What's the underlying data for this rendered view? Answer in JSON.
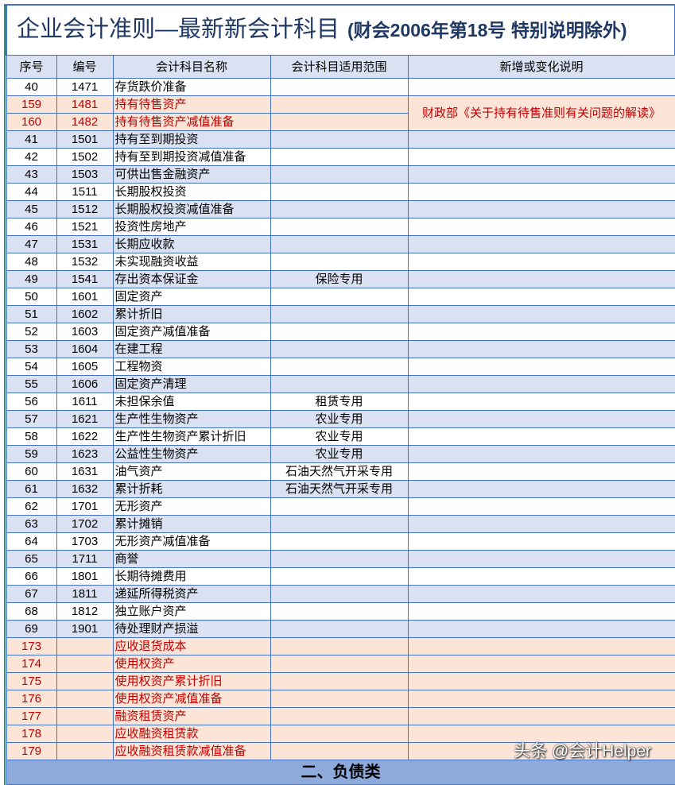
{
  "title": {
    "main": "企业会计准则—最新新会计科目",
    "sub": "(财会2006年第18号 特别说明除外)"
  },
  "columns": [
    "序号",
    "编号",
    "会计科目名称",
    "会计科目适用范围",
    "新增或变化说明"
  ],
  "merged_note": "财政部《关于持有待售准则有关问题的解读》",
  "rows": [
    {
      "seq": "40",
      "code": "1471",
      "name": "存货跌价准备",
      "scope": "",
      "style": "white"
    },
    {
      "seq": "159",
      "code": "1481",
      "name": "持有待售资产",
      "scope": "",
      "style": "pink"
    },
    {
      "seq": "160",
      "code": "1482",
      "name": "持有待售资产减值准备",
      "scope": "",
      "style": "pink"
    },
    {
      "seq": "41",
      "code": "1501",
      "name": "持有至到期投资",
      "scope": "",
      "style": "blue"
    },
    {
      "seq": "42",
      "code": "1502",
      "name": "持有至到期投资减值准备",
      "scope": "",
      "style": "white"
    },
    {
      "seq": "43",
      "code": "1503",
      "name": "可供出售金融资产",
      "scope": "",
      "style": "blue"
    },
    {
      "seq": "44",
      "code": "1511",
      "name": "长期股权投资",
      "scope": "",
      "style": "white"
    },
    {
      "seq": "45",
      "code": "1512",
      "name": "长期股权投资减值准备",
      "scope": "",
      "style": "blue"
    },
    {
      "seq": "46",
      "code": "1521",
      "name": "投资性房地产",
      "scope": "",
      "style": "white"
    },
    {
      "seq": "47",
      "code": "1531",
      "name": "长期应收款",
      "scope": "",
      "style": "blue"
    },
    {
      "seq": "48",
      "code": "1532",
      "name": "未实现融资收益",
      "scope": "",
      "style": "white"
    },
    {
      "seq": "49",
      "code": "1541",
      "name": "存出资本保证金",
      "scope": "保险专用",
      "style": "blue"
    },
    {
      "seq": "50",
      "code": "1601",
      "name": "固定资产",
      "scope": "",
      "style": "white"
    },
    {
      "seq": "51",
      "code": "1602",
      "name": "累计折旧",
      "scope": "",
      "style": "blue"
    },
    {
      "seq": "52",
      "code": "1603",
      "name": "固定资产减值准备",
      "scope": "",
      "style": "white"
    },
    {
      "seq": "53",
      "code": "1604",
      "name": "在建工程",
      "scope": "",
      "style": "blue"
    },
    {
      "seq": "54",
      "code": "1605",
      "name": "工程物资",
      "scope": "",
      "style": "white"
    },
    {
      "seq": "55",
      "code": "1606",
      "name": "固定资产清理",
      "scope": "",
      "style": "blue"
    },
    {
      "seq": "56",
      "code": "1611",
      "name": "未担保余值",
      "scope": "租赁专用",
      "style": "white"
    },
    {
      "seq": "57",
      "code": "1621",
      "name": "生产性生物资产",
      "scope": "农业专用",
      "style": "blue"
    },
    {
      "seq": "58",
      "code": "1622",
      "name": "生产性生物资产累计折旧",
      "scope": "农业专用",
      "style": "white"
    },
    {
      "seq": "59",
      "code": "1623",
      "name": "公益性生物资产",
      "scope": "农业专用",
      "style": "blue"
    },
    {
      "seq": "60",
      "code": "1631",
      "name": "油气资产",
      "scope": "石油天然气开采专用",
      "style": "white"
    },
    {
      "seq": "61",
      "code": "1632",
      "name": "累计折耗",
      "scope": "石油天然气开采专用",
      "style": "blue"
    },
    {
      "seq": "62",
      "code": "1701",
      "name": "无形资产",
      "scope": "",
      "style": "white"
    },
    {
      "seq": "63",
      "code": "1702",
      "name": "累计摊销",
      "scope": "",
      "style": "blue"
    },
    {
      "seq": "64",
      "code": "1703",
      "name": "无形资产减值准备",
      "scope": "",
      "style": "white"
    },
    {
      "seq": "65",
      "code": "1711",
      "name": "商誉",
      "scope": "",
      "style": "blue"
    },
    {
      "seq": "66",
      "code": "1801",
      "name": "长期待摊费用",
      "scope": "",
      "style": "white"
    },
    {
      "seq": "67",
      "code": "1811",
      "name": "递延所得税资产",
      "scope": "",
      "style": "blue"
    },
    {
      "seq": "68",
      "code": "1812",
      "name": "独立账户资产",
      "scope": "",
      "style": "white"
    },
    {
      "seq": "69",
      "code": "1901",
      "name": "待处理财产损溢",
      "scope": "",
      "style": "blue"
    },
    {
      "seq": "173",
      "code": "",
      "name": "应收退货成本",
      "scope": "",
      "style": "pink"
    },
    {
      "seq": "174",
      "code": "",
      "name": "使用权资产",
      "scope": "",
      "style": "pink"
    },
    {
      "seq": "175",
      "code": "",
      "name": "使用权资产累计折旧",
      "scope": "",
      "style": "pink"
    },
    {
      "seq": "176",
      "code": "",
      "name": "使用权资产减值准备",
      "scope": "",
      "style": "pink"
    },
    {
      "seq": "177",
      "code": "",
      "name": "融资租赁资产",
      "scope": "",
      "style": "pink"
    },
    {
      "seq": "178",
      "code": "",
      "name": "应收融资租赁款",
      "scope": "",
      "style": "pink"
    },
    {
      "seq": "179",
      "code": "",
      "name": "应收融资租赁款减值准备",
      "scope": "",
      "style": "pink"
    }
  ],
  "section_next": "二、负债类",
  "watermark": "头条 @会计Helper",
  "colors": {
    "row_blue": "#d9e1f2",
    "row_pink": "#fce4d6",
    "highlight_text": "#c00000",
    "border": "#4472c4",
    "section": "#8eaadb",
    "title": "#1f3864"
  }
}
